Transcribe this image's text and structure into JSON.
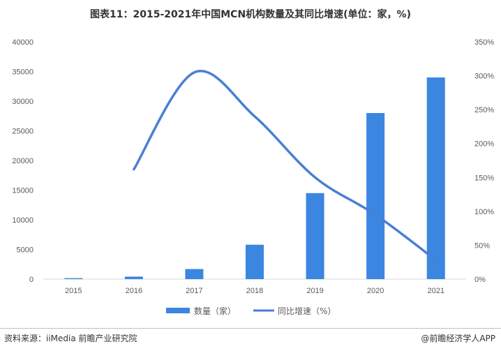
{
  "header": {
    "title": "图表11：2015-2021年中国MCN机构数量及其同比增速(单位：家，%)"
  },
  "chart_data": {
    "type": "bar",
    "categories": [
      "2015",
      "2016",
      "2017",
      "2018",
      "2019",
      "2020",
      "2021"
    ],
    "series": [
      {
        "name": "数量（家）",
        "type": "bar",
        "axis": "left",
        "color": "#3a86e0",
        "values": [
          160,
          420,
          1700,
          5800,
          14500,
          28000,
          34000
        ]
      },
      {
        "name": "同比增速（%）",
        "type": "line",
        "axis": "right",
        "color": "#4a7fd4",
        "values": [
          null,
          162,
          305,
          240,
          150,
          95,
          28
        ]
      }
    ],
    "y_left": {
      "min": 0,
      "max": 40000,
      "ticks": [
        "0",
        "5000",
        "10000",
        "15000",
        "20000",
        "25000",
        "30000",
        "35000",
        "40000"
      ]
    },
    "y_right": {
      "min": 0,
      "max": 350,
      "ticks": [
        "0%",
        "50%",
        "100%",
        "150%",
        "200%",
        "250%",
        "300%",
        "350%"
      ]
    },
    "legend_position": "bottom",
    "grid": false
  },
  "footer": {
    "source": "资料来源：iiMedia 前瞻产业研究院",
    "brand": "@前瞻经济学人APP"
  }
}
